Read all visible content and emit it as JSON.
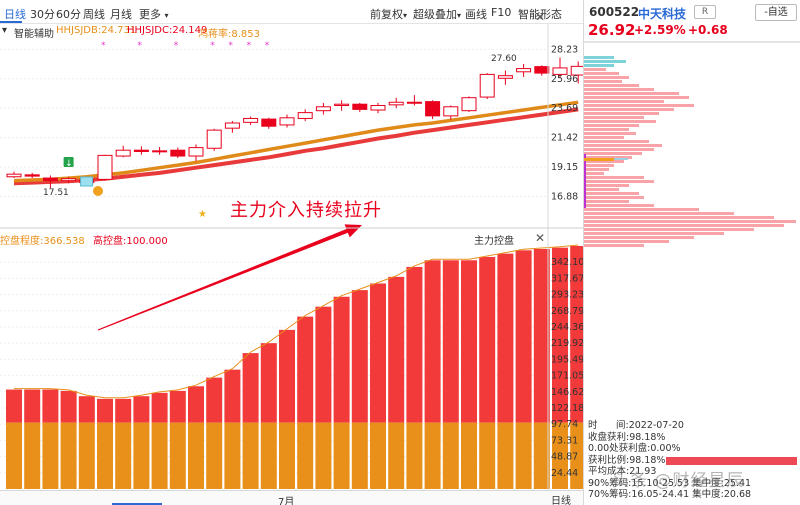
{
  "toolbar": {
    "tabs": [
      "日线",
      "30分",
      "60分",
      "周线",
      "月线",
      "更多"
    ],
    "right_items": [
      "前复权",
      "超级叠加",
      "画线",
      "F10",
      "智能形态"
    ]
  },
  "indicator": {
    "name": "智能辅助",
    "jdb": "HHJSJDB:24.731",
    "jdc": "HHJSJDC:24.149",
    "lc": "鸿蒋率:8.853"
  },
  "upper_axis": [
    "28.23",
    "25.96",
    "23.69",
    "21.42",
    "19.15",
    "16.88"
  ],
  "price_labels": {
    "high": "27.60",
    "low": "17.51"
  },
  "annotation": "主力介入持续拉升",
  "lower_header": {
    "left1": "控盘程度:366.538",
    "left2": "高控盘:100.000",
    "right": "主力控盘"
  },
  "lower_axis": [
    "342.10",
    "317.67",
    "293.23",
    "268.79",
    "244.36",
    "219.92",
    "195.49",
    "171.05",
    "146.62",
    "122.18",
    "97.74",
    "73.31",
    "48.87",
    "24.44"
  ],
  "bottom": {
    "month": "7月",
    "day_button": "日线"
  },
  "stock": {
    "code": "600522",
    "name": "中天科技",
    "badge": "R",
    "price": "26.92",
    "pct": "+2.59%",
    "change": "+0.68",
    "watchlist_button": "-自选"
  },
  "chip_info": {
    "time_label": "时",
    "time_value": "间:2022-07-20",
    "profit": "收盘获利:98.18%",
    "profit_at": "0.00处获利盘:0.00%",
    "ratio": "获利比例:98.18%",
    "ratio_value": 0.9818,
    "avg_cost": "平均成本:21.93",
    "line90": "90%筹码:15.10-25.53 集中度:25.41",
    "line70": "70%筹码:16.05-24.41 集中度:20.68"
  },
  "watermark": "头条 @财经星辰",
  "colors": {
    "up": "#e8001c",
    "orange": "#e8901a",
    "accent": "#2a6ad6",
    "chip": "#f7a3a8",
    "chip_top": "#7dd3d8"
  },
  "chart_data": [
    {
      "type": "candlestick",
      "y_range": [
        14.6,
        28.8
      ],
      "candles": [
        {
          "o": 18.4,
          "c": 18.6,
          "h": 18.8,
          "l": 18.3
        },
        {
          "o": 18.55,
          "c": 18.45,
          "h": 18.7,
          "l": 18.3
        },
        {
          "o": 18.3,
          "c": 18.1,
          "h": 18.5,
          "l": 17.51
        },
        {
          "o": 18.1,
          "c": 18.25,
          "h": 18.4,
          "l": 17.9
        },
        {
          "o": 18.15,
          "c": 17.95,
          "h": 18.4,
          "l": 17.8
        },
        {
          "o": 18.2,
          "c": 20.05,
          "h": 20.1,
          "l": 18.1
        },
        {
          "o": 20.0,
          "c": 20.45,
          "h": 20.8,
          "l": 19.9
        },
        {
          "o": 20.45,
          "c": 20.35,
          "h": 20.75,
          "l": 20.1
        },
        {
          "o": 20.35,
          "c": 20.4,
          "h": 20.7,
          "l": 20.1
        },
        {
          "o": 20.45,
          "c": 20.0,
          "h": 20.65,
          "l": 19.85
        },
        {
          "o": 20.0,
          "c": 20.65,
          "h": 20.9,
          "l": 19.6
        },
        {
          "o": 20.6,
          "c": 22.0,
          "h": 22.1,
          "l": 20.4
        },
        {
          "o": 22.15,
          "c": 22.55,
          "h": 22.7,
          "l": 21.8
        },
        {
          "o": 22.6,
          "c": 22.9,
          "h": 23.05,
          "l": 22.4
        },
        {
          "o": 22.85,
          "c": 22.3,
          "h": 22.95,
          "l": 22.1
        },
        {
          "o": 22.4,
          "c": 22.95,
          "h": 23.2,
          "l": 22.2
        },
        {
          "o": 22.9,
          "c": 23.35,
          "h": 23.6,
          "l": 22.7
        },
        {
          "o": 23.5,
          "c": 23.8,
          "h": 24.1,
          "l": 23.2
        },
        {
          "o": 23.9,
          "c": 24.0,
          "h": 24.3,
          "l": 23.5
        },
        {
          "o": 24.0,
          "c": 23.6,
          "h": 24.1,
          "l": 23.4
        },
        {
          "o": 23.55,
          "c": 23.9,
          "h": 24.1,
          "l": 23.3
        },
        {
          "o": 23.95,
          "c": 24.15,
          "h": 24.5,
          "l": 23.7
        },
        {
          "o": 24.15,
          "c": 24.15,
          "h": 24.7,
          "l": 23.9
        },
        {
          "o": 24.2,
          "c": 23.1,
          "h": 24.3,
          "l": 22.85
        },
        {
          "o": 23.1,
          "c": 23.8,
          "h": 23.9,
          "l": 22.8
        },
        {
          "o": 23.5,
          "c": 24.5,
          "h": 24.6,
          "l": 23.4
        },
        {
          "o": 24.55,
          "c": 26.3,
          "h": 26.4,
          "l": 24.4
        },
        {
          "o": 26.0,
          "c": 26.2,
          "h": 26.6,
          "l": 25.5
        },
        {
          "o": 26.5,
          "c": 26.75,
          "h": 27.1,
          "l": 26.1
        },
        {
          "o": 26.9,
          "c": 26.4,
          "h": 27.0,
          "l": 26.2
        },
        {
          "o": 26.3,
          "c": 26.8,
          "h": 27.6,
          "l": 26.0
        },
        {
          "o": 26.25,
          "c": 26.92,
          "h": 27.3,
          "l": 25.6
        }
      ],
      "ma1": [
        18.1,
        18.15,
        18.2,
        18.3,
        18.4,
        18.55,
        18.7,
        18.9,
        19.1,
        19.3,
        19.5,
        19.75,
        20.0,
        20.25,
        20.5,
        20.75,
        21.0,
        21.25,
        21.5,
        21.75,
        22.0,
        22.2,
        22.4,
        22.55,
        22.75,
        22.95,
        23.15,
        23.35,
        23.55,
        23.75,
        23.95,
        24.15
      ],
      "ma2": [
        17.9,
        17.95,
        18.0,
        18.05,
        18.15,
        18.25,
        18.4,
        18.55,
        18.7,
        18.9,
        19.1,
        19.3,
        19.5,
        19.7,
        19.9,
        20.15,
        20.4,
        20.6,
        20.85,
        21.1,
        21.35,
        21.55,
        21.8,
        22.0,
        22.2,
        22.4,
        22.6,
        22.8,
        23.0,
        23.2,
        23.4,
        23.6
      ]
    },
    {
      "type": "bar",
      "title": "主力控盘",
      "ylim": [
        0,
        366.538
      ],
      "series": [
        {
          "name": "控盘程度",
          "values": [
            150,
            150,
            150,
            148,
            140,
            136,
            136,
            140,
            145,
            148,
            155,
            168,
            180,
            205,
            220,
            240,
            260,
            275,
            290,
            300,
            310,
            320,
            335,
            345,
            345,
            345,
            350,
            355,
            360,
            362,
            364,
            366.538
          ]
        },
        {
          "name": "高控盘",
          "values": [
            100,
            100,
            100,
            100,
            100,
            100,
            100,
            100,
            100,
            100,
            100,
            100,
            100,
            100,
            100,
            100,
            100,
            100,
            100,
            100,
            100,
            100,
            100,
            100,
            100,
            100,
            100,
            100,
            100,
            100,
            100,
            100
          ]
        }
      ]
    }
  ]
}
